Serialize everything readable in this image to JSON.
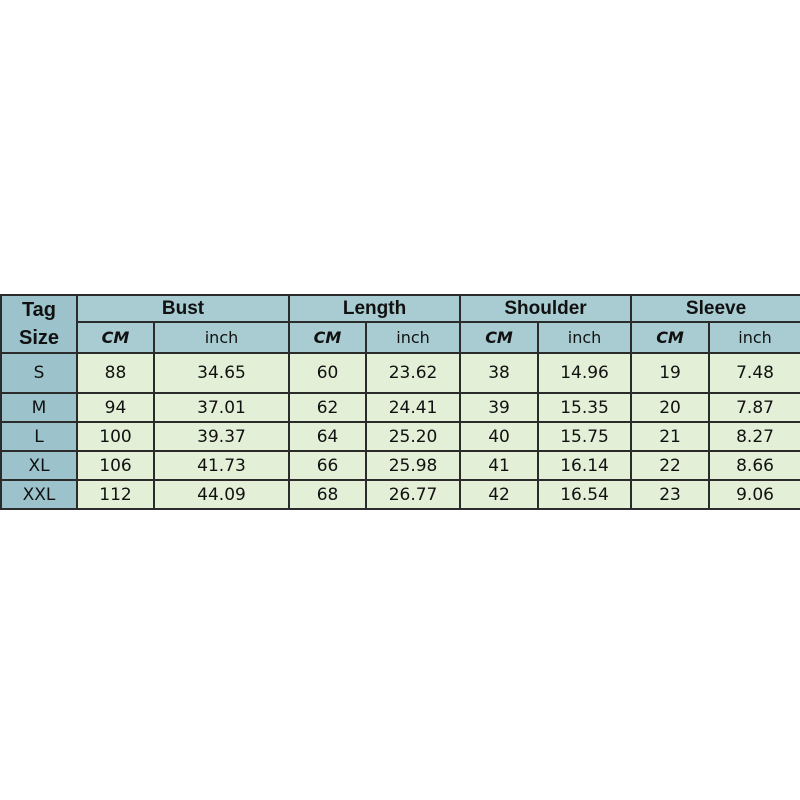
{
  "table": {
    "tag_header_line1": "Tag",
    "tag_header_line2": "Size",
    "groups": [
      "Bust",
      "Length",
      "Shoulder",
      "Sleeve"
    ],
    "units": [
      "CM",
      "inch"
    ],
    "rows": [
      {
        "size": "S",
        "values": [
          "88",
          "34.65",
          "60",
          "23.62",
          "38",
          "14.96",
          "19",
          "7.48"
        ]
      },
      {
        "size": "M",
        "values": [
          "94",
          "37.01",
          "62",
          "24.41",
          "39",
          "15.35",
          "20",
          "7.87"
        ]
      },
      {
        "size": "L",
        "values": [
          "100",
          "39.37",
          "64",
          "25.20",
          "40",
          "15.75",
          "21",
          "8.27"
        ]
      },
      {
        "size": "XL",
        "values": [
          "106",
          "41.73",
          "66",
          "25.98",
          "41",
          "16.14",
          "22",
          "8.66"
        ]
      },
      {
        "size": "XXL",
        "values": [
          "112",
          "44.09",
          "68",
          "26.77",
          "42",
          "16.54",
          "23",
          "9.06"
        ]
      }
    ],
    "colors": {
      "header": "#a8ccd2",
      "tag_column": "#9cc3cb",
      "cells": "#e3efd7",
      "border": "#2b2b2b"
    }
  }
}
